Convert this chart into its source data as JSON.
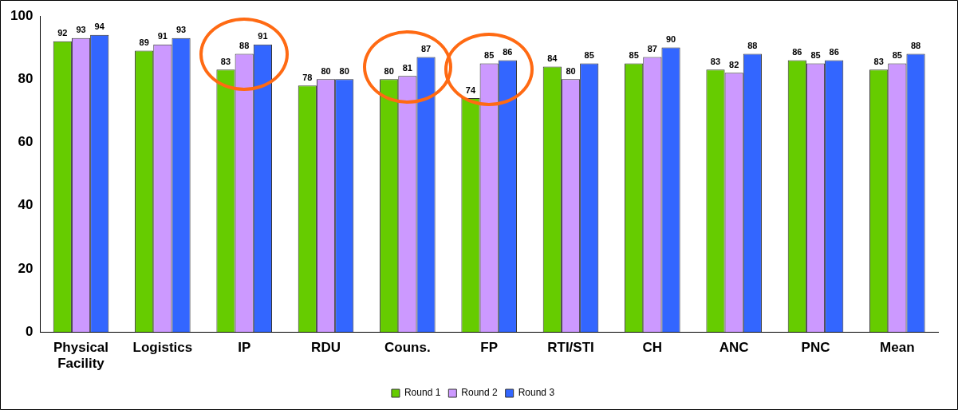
{
  "chart_data": {
    "type": "bar",
    "categories": [
      "Physical Facility",
      "Logistics",
      "IP",
      "RDU",
      "Couns.",
      "FP",
      "RTI/STI",
      "CH",
      "ANC",
      "PNC",
      "Mean"
    ],
    "series": [
      {
        "name": "Round 1",
        "color": "#66cc00",
        "values": [
          92,
          89,
          83,
          78,
          80,
          74,
          84,
          85,
          83,
          86,
          83
        ]
      },
      {
        "name": "Round 2",
        "color": "#cc99ff",
        "values": [
          93,
          91,
          88,
          80,
          81,
          85,
          80,
          87,
          82,
          85,
          85
        ]
      },
      {
        "name": "Round 3",
        "color": "#3366ff",
        "values": [
          94,
          93,
          91,
          80,
          87,
          86,
          85,
          90,
          88,
          86,
          88
        ]
      }
    ],
    "ylim": [
      0,
      100
    ],
    "yticks": [
      0,
      20,
      40,
      60,
      80,
      100
    ],
    "grid": false,
    "legend": "bottom",
    "data_labels": true
  }
}
